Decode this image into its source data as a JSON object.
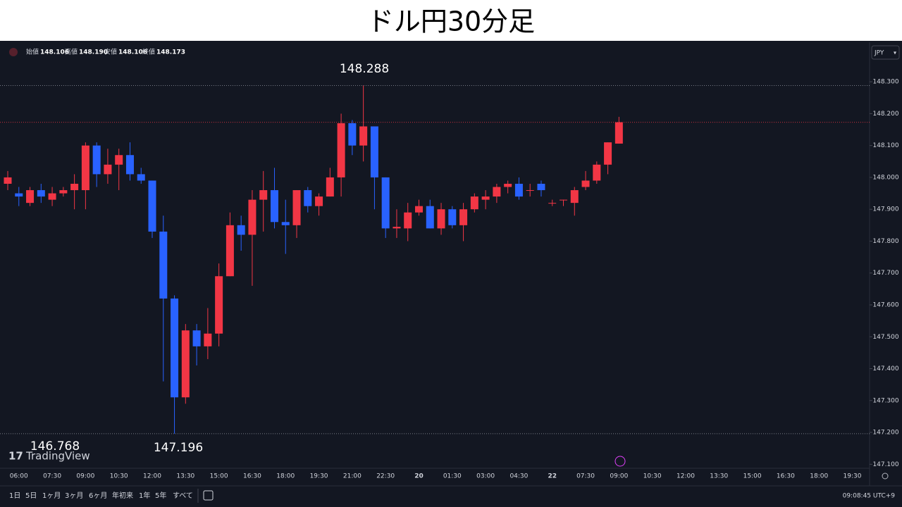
{
  "chart_data": {
    "type": "candlestick",
    "title": "ドル円30分足",
    "ohlc_header": {
      "names": [
        "始値",
        "高値",
        "安値",
        "終値"
      ],
      "values": [
        148.106,
        148.19,
        148.106,
        148.173
      ],
      "value_labels": [
        "148.106",
        "148.190",
        "148.106",
        "148.173"
      ]
    },
    "currency": "JPY",
    "watermark": "TradingView",
    "up_color": "#f23645",
    "down_color": "#2962ff",
    "grid": false,
    "categories": [
      null,
      "06:00",
      null,
      null,
      "07:30",
      null,
      null,
      "09:00",
      null,
      null,
      "10:30",
      null,
      null,
      "12:00",
      null,
      null,
      "13:30",
      null,
      null,
      "15:00",
      null,
      null,
      "16:30",
      null,
      null,
      "18:00",
      null,
      null,
      "19:30",
      null,
      null,
      "21:00",
      null,
      null,
      "22:30",
      null,
      null,
      "20",
      null,
      null,
      "01:30",
      null,
      null,
      "03:00",
      null,
      null,
      "04:30",
      null,
      null,
      "22",
      null,
      null,
      "07:30",
      null,
      null,
      "09:00",
      null,
      null,
      "10:30",
      null,
      null,
      "12:00",
      null,
      null,
      "13:30",
      null,
      null,
      "15:00",
      null,
      null,
      "16:30",
      null,
      null,
      "18:00",
      null,
      null,
      "19:30"
    ],
    "open": [
      147.98,
      147.95,
      147.92,
      147.96,
      147.93,
      147.95,
      147.96,
      147.96,
      148.1,
      148.01,
      148.04,
      148.07,
      148.01,
      147.99,
      147.83,
      147.62,
      147.31,
      147.52,
      147.47,
      147.51,
      147.69,
      147.85,
      147.82,
      147.93,
      147.96,
      147.86,
      147.85,
      147.96,
      147.91,
      147.94,
      148.0,
      148.17,
      148.1,
      148.16,
      148.0,
      147.84,
      147.84,
      147.89,
      147.91,
      147.84,
      147.9,
      147.85,
      147.9,
      147.93,
      147.94,
      147.97,
      147.98,
      147.96,
      147.98,
      147.92,
      147.93,
      147.92,
      147.97,
      147.99,
      148.04,
      148.106,
      null,
      null,
      null,
      null,
      null,
      null,
      null,
      null,
      null,
      null,
      null,
      null,
      null,
      null,
      null,
      null,
      null,
      null,
      null,
      null,
      null
    ],
    "high": [
      148.02,
      147.97,
      147.97,
      147.98,
      147.97,
      147.97,
      148.01,
      148.11,
      148.11,
      148.09,
      148.09,
      148.11,
      148.03,
      147.99,
      147.88,
      147.63,
      147.54,
      147.54,
      147.59,
      147.73,
      147.89,
      147.88,
      147.96,
      148.02,
      148.03,
      147.93,
      147.96,
      147.97,
      147.95,
      148.03,
      148.2,
      148.18,
      148.288,
      148.16,
      148.0,
      147.9,
      147.92,
      147.93,
      147.93,
      147.92,
      147.91,
      147.92,
      147.95,
      147.96,
      147.98,
      147.99,
      148.0,
      147.98,
      147.99,
      147.93,
      147.93,
      147.97,
      148.02,
      148.05,
      148.11,
      148.19,
      null,
      null,
      null,
      null,
      null,
      null,
      null,
      null,
      null,
      null,
      null,
      null,
      null,
      null,
      null,
      null,
      null,
      null,
      null,
      null,
      null
    ],
    "low": [
      147.96,
      147.91,
      147.91,
      147.92,
      147.91,
      147.94,
      147.9,
      147.9,
      147.97,
      147.98,
      147.96,
      147.99,
      147.98,
      147.81,
      147.36,
      147.196,
      147.29,
      147.41,
      147.43,
      147.47,
      147.69,
      147.77,
      147.66,
      147.83,
      147.84,
      147.76,
      147.81,
      147.89,
      147.88,
      147.94,
      147.94,
      148.07,
      148.05,
      147.9,
      147.81,
      147.81,
      147.8,
      147.88,
      147.84,
      147.82,
      147.84,
      147.8,
      147.89,
      147.9,
      147.92,
      147.95,
      147.93,
      147.94,
      147.94,
      147.91,
      147.91,
      147.88,
      147.96,
      147.98,
      148.01,
      148.106,
      null,
      null,
      null,
      null,
      null,
      null,
      null,
      null,
      null,
      null,
      null,
      null,
      null,
      null,
      null,
      null,
      null,
      null,
      null,
      null,
      null
    ],
    "close": [
      148.0,
      147.94,
      147.96,
      147.94,
      147.95,
      147.96,
      147.98,
      148.1,
      148.01,
      148.04,
      148.07,
      148.01,
      147.99,
      147.83,
      147.62,
      147.31,
      147.52,
      147.47,
      147.51,
      147.69,
      147.85,
      147.82,
      147.93,
      147.96,
      147.86,
      147.85,
      147.96,
      147.91,
      147.94,
      148.0,
      148.17,
      148.1,
      148.16,
      148.0,
      147.84,
      147.845,
      147.89,
      147.91,
      147.84,
      147.9,
      147.85,
      147.9,
      147.94,
      147.94,
      147.97,
      147.98,
      147.94,
      147.96,
      147.96,
      147.92,
      147.93,
      147.96,
      147.99,
      148.04,
      148.11,
      148.173,
      null,
      null,
      null,
      null,
      null,
      null,
      null,
      null,
      null,
      null,
      null,
      null,
      null,
      null,
      null,
      null,
      null,
      null,
      null,
      null,
      null
    ],
    "ylim": [
      147.072,
      148.424
    ],
    "yticks": [
      {
        "value": 148.3,
        "label": "148.300"
      },
      {
        "value": 148.2,
        "label": "148.200"
      },
      {
        "value": 148.1,
        "label": "148.100"
      },
      {
        "value": 148.0,
        "label": "148.000"
      },
      {
        "value": 147.9,
        "label": "147.900"
      },
      {
        "value": 147.8,
        "label": "147.800"
      },
      {
        "value": 147.7,
        "label": "147.700"
      },
      {
        "value": 147.6,
        "label": "147.600"
      },
      {
        "value": 147.5,
        "label": "147.500"
      },
      {
        "value": 147.4,
        "label": "147.400"
      },
      {
        "value": 147.3,
        "label": "147.300"
      },
      {
        "value": 147.2,
        "label": "147.200"
      },
      {
        "value": 147.1,
        "label": "147.100"
      }
    ],
    "annotations": [
      148.288,
      147.196,
      146.768
    ],
    "toolbar": {
      "periods": [
        "1日",
        "5日",
        "1ヶ月",
        "3ヶ月",
        "6ヶ月",
        "年初来",
        "1年",
        "5年",
        "すべて"
      ],
      "clock": "09:08:45 UTC+9"
    }
  }
}
